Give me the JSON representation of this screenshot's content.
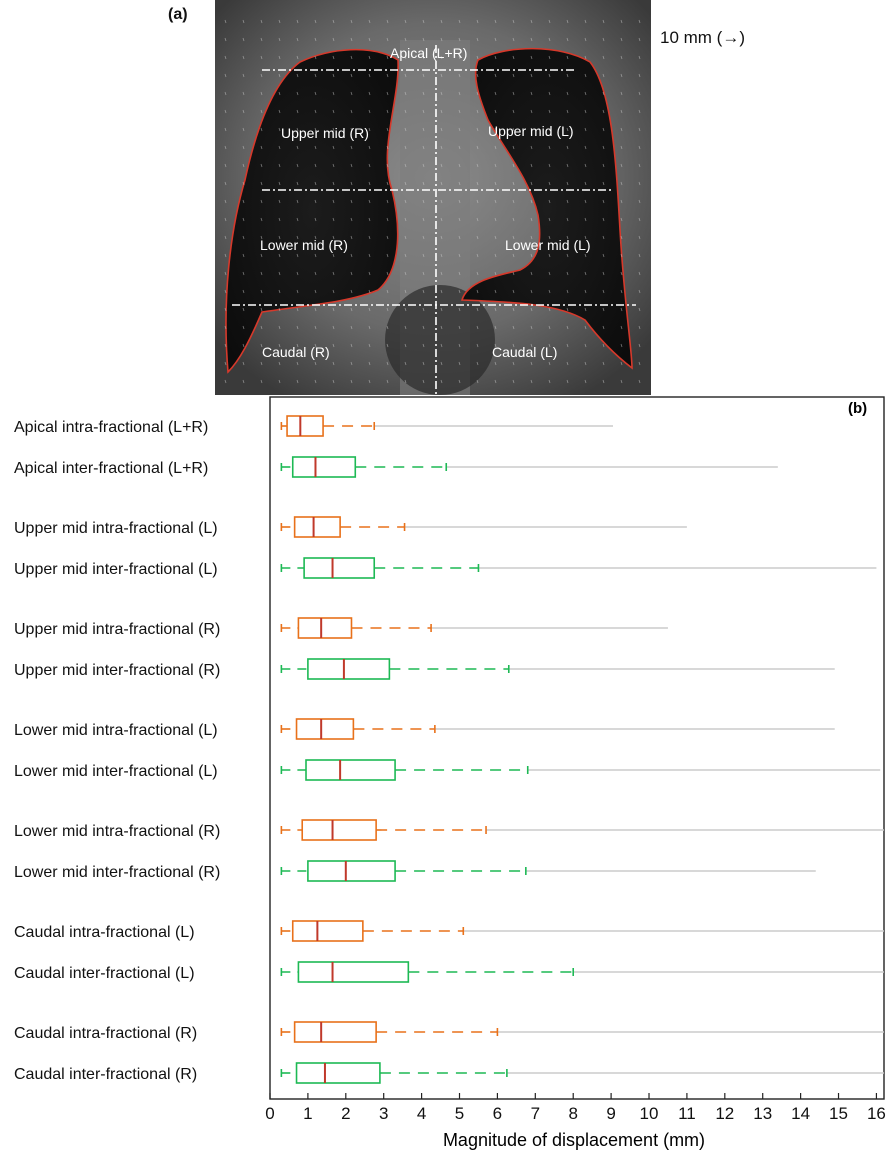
{
  "panel_a": {
    "label": "(a)",
    "scale_label": "10 mm (",
    "scale_arrow": "→",
    "scale_close": ")",
    "regions": {
      "apical": "Apical (L+R)",
      "upper_mid_r": "Upper mid (R)",
      "upper_mid_l": "Upper mid (L)",
      "lower_mid_r": "Lower mid (R)",
      "lower_mid_l": "Lower mid (L)",
      "caudal_r": "Caudal (R)",
      "caudal_l": "Caudal (L)"
    }
  },
  "chart_data": {
    "type": "boxplot",
    "panel_label": "(b)",
    "xlabel": "Magnitude of displacement (mm)",
    "xlim": [
      0,
      16.2
    ],
    "xticks": [
      0,
      1,
      2,
      3,
      4,
      5,
      6,
      7,
      8,
      9,
      10,
      11,
      12,
      13,
      14,
      15,
      16
    ],
    "colors": {
      "intra": "#E8711A",
      "inter": "#1DB954",
      "median": "#C0392B",
      "outlier": "#cccccc"
    },
    "rows": [
      {
        "label": "Apical intra-fractional (L+R)",
        "kind": "intra",
        "min": 0.3,
        "q1": 0.45,
        "median": 0.8,
        "q3": 1.4,
        "max": 2.75,
        "outlier_max": 9.05
      },
      {
        "label": "Apical inter-fractional (L+R)",
        "kind": "inter",
        "min": 0.3,
        "q1": 0.6,
        "median": 1.2,
        "q3": 2.25,
        "max": 4.65,
        "outlier_max": 13.4
      },
      {
        "label": "Upper mid intra-fractional (L)",
        "kind": "intra",
        "min": 0.3,
        "q1": 0.65,
        "median": 1.15,
        "q3": 1.85,
        "max": 3.55,
        "outlier_max": 11.0
      },
      {
        "label": "Upper mid inter-fractional (L)",
        "kind": "inter",
        "min": 0.3,
        "q1": 0.9,
        "median": 1.65,
        "q3": 2.75,
        "max": 5.5,
        "outlier_max": 16.0
      },
      {
        "label": "Upper mid intra-fractional (R)",
        "kind": "intra",
        "min": 0.3,
        "q1": 0.75,
        "median": 1.35,
        "q3": 2.15,
        "max": 4.25,
        "outlier_max": 10.5
      },
      {
        "label": "Upper mid inter-fractional (R)",
        "kind": "inter",
        "min": 0.3,
        "q1": 1.0,
        "median": 1.95,
        "q3": 3.15,
        "max": 6.3,
        "outlier_max": 14.9
      },
      {
        "label": "Lower mid intra-fractional (L)",
        "kind": "intra",
        "min": 0.3,
        "q1": 0.7,
        "median": 1.35,
        "q3": 2.2,
        "max": 4.35,
        "outlier_max": 14.9
      },
      {
        "label": "Lower mid inter-fractional (L)",
        "kind": "inter",
        "min": 0.3,
        "q1": 0.95,
        "median": 1.85,
        "q3": 3.3,
        "max": 6.8,
        "outlier_max": 16.1
      },
      {
        "label": "Lower mid intra-fractional (R)",
        "kind": "intra",
        "min": 0.3,
        "q1": 0.85,
        "median": 1.65,
        "q3": 2.8,
        "max": 5.7,
        "outlier_max": 16.2
      },
      {
        "label": "Lower mid inter-fractional (R)",
        "kind": "inter",
        "min": 0.3,
        "q1": 1.0,
        "median": 2.0,
        "q3": 3.3,
        "max": 6.75,
        "outlier_max": 14.4
      },
      {
        "label": "Caudal intra-fractional (L)",
        "kind": "intra",
        "min": 0.3,
        "q1": 0.6,
        "median": 1.25,
        "q3": 2.45,
        "max": 5.1,
        "outlier_max": 16.2
      },
      {
        "label": "Caudal inter-fractional (L)",
        "kind": "inter",
        "min": 0.3,
        "q1": 0.75,
        "median": 1.65,
        "q3": 3.65,
        "max": 8.0,
        "outlier_max": 16.2
      },
      {
        "label": "Caudal intra-fractional (R)",
        "kind": "intra",
        "min": 0.3,
        "q1": 0.65,
        "median": 1.35,
        "q3": 2.8,
        "max": 6.0,
        "outlier_max": 16.2
      },
      {
        "label": "Caudal inter-fractional (R)",
        "kind": "inter",
        "min": 0.3,
        "q1": 0.7,
        "median": 1.45,
        "q3": 2.9,
        "max": 6.25,
        "outlier_max": 16.2
      }
    ]
  }
}
